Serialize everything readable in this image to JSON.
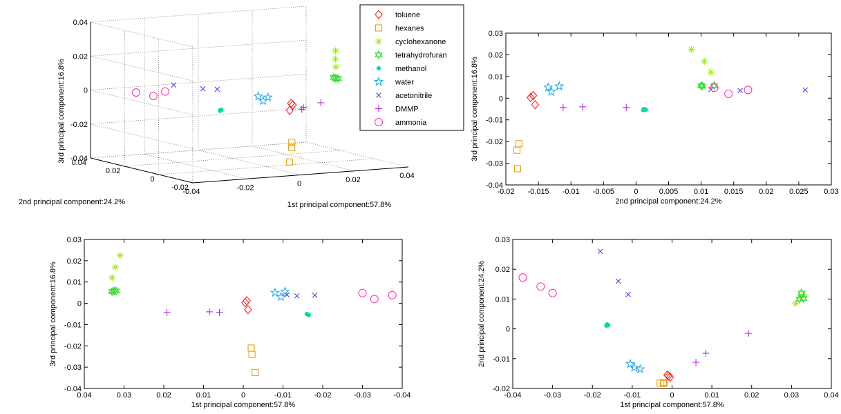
{
  "legend": [
    {
      "name": "toluene",
      "color": "#ff2222",
      "marker": "diamond"
    },
    {
      "name": "hexanes",
      "color": "#f0a000",
      "marker": "square"
    },
    {
      "name": "cyclohexanone",
      "color": "#99ee00",
      "marker": "asterisk"
    },
    {
      "name": "tetrahydrofuran",
      "color": "#33dd33",
      "marker": "hexagram"
    },
    {
      "name": "methanol",
      "color": "#00ddaa",
      "marker": "dot"
    },
    {
      "name": "water",
      "color": "#22aaee",
      "marker": "pentagram"
    },
    {
      "name": "acetonitrile",
      "color": "#4444ee",
      "marker": "x"
    },
    {
      "name": "DMMP",
      "color": "#bb22ee",
      "marker": "plus"
    },
    {
      "name": "ammonia",
      "color": "#ff33aa",
      "marker": "circle"
    }
  ],
  "chart_data": [
    {
      "type": "scatter",
      "view": "3d",
      "xlabel": "1st principal component:57.8%",
      "ylabel": "2nd principal component:24.2%",
      "zlabel": "3rd principal component:16.8%",
      "xlim": [
        -0.04,
        0.04
      ],
      "ylim": [
        -0.02,
        0.04
      ],
      "zlim": [
        -0.04,
        0.04
      ],
      "xticks": [
        -0.04,
        -0.02,
        0,
        0.02,
        0.04
      ],
      "yticks": [
        -0.02,
        0,
        0.02,
        0.04
      ],
      "zticks": [
        -0.04,
        -0.02,
        0,
        0.02,
        0.04
      ],
      "xtick_labels": [
        "-0.04",
        "-0.02",
        "0",
        "0.02",
        "0.04"
      ],
      "ytick_labels": [
        "-0.02",
        "0",
        "0.02",
        "0.04"
      ],
      "ztick_labels": [
        "-0.04",
        "-0.02",
        "0",
        "0.02",
        "0.04"
      ],
      "grid": true,
      "legend_position": "top-right",
      "series": [
        {
          "name": "toluene",
          "points": [
            [
              -0.0009,
              -0.0158,
              0.0012
            ],
            [
              -0.0005,
              -0.0162,
              0.0003
            ],
            [
              -0.0012,
              -0.0155,
              -0.003
            ]
          ]
        },
        {
          "name": "hexanes",
          "points": [
            [
              -0.002,
              -0.018,
              -0.021
            ],
            [
              -0.0022,
              -0.0183,
              -0.024
            ],
            [
              -0.003,
              -0.0182,
              -0.0325
            ]
          ]
        },
        {
          "name": "cyclohexanone",
          "points": [
            [
              0.031,
              0.0085,
              0.0225
            ],
            [
              0.0322,
              0.0105,
              0.017
            ],
            [
              0.033,
              0.0115,
              0.012
            ]
          ]
        },
        {
          "name": "tetrahydrofuran",
          "points": [
            [
              0.032,
              0.01,
              0.0058
            ],
            [
              0.0325,
              0.012,
              0.0058
            ],
            [
              0.033,
              0.0102,
              0.0055
            ]
          ]
        },
        {
          "name": "methanol",
          "points": [
            [
              -0.016,
              0.0012,
              -0.005
            ],
            [
              -0.0163,
              0.0015,
              -0.0053
            ],
            [
              -0.0165,
              0.0011,
              -0.0055
            ]
          ]
        },
        {
          "name": "water",
          "points": [
            [
              -0.008,
              -0.0135,
              0.005
            ],
            [
              -0.0095,
              -0.013,
              0.003
            ],
            [
              -0.0105,
              -0.0118,
              0.0055
            ]
          ]
        },
        {
          "name": "acetonitrile",
          "points": [
            [
              -0.0135,
              0.016,
              0.0035
            ],
            [
              -0.018,
              0.026,
              0.0038
            ],
            [
              -0.011,
              0.0115,
              0.004
            ]
          ]
        },
        {
          "name": "DMMP",
          "points": [
            [
              0.0192,
              -0.0015,
              -0.0043
            ],
            [
              0.0085,
              -0.0082,
              -0.004
            ],
            [
              0.006,
              -0.0112,
              -0.0043
            ]
          ]
        },
        {
          "name": "ammonia",
          "points": [
            [
              -0.03,
              0.012,
              0.0048
            ],
            [
              -0.033,
              0.0142,
              0.002
            ],
            [
              -0.0375,
              0.0172,
              0.0038
            ]
          ]
        }
      ]
    },
    {
      "type": "scatter",
      "projection": "y-z",
      "xlabel": "2nd principal component:24.2%",
      "ylabel": "3rd principal component:16.8%",
      "xlim": [
        -0.02,
        0.03
      ],
      "ylim": [
        -0.04,
        0.03
      ],
      "xticks": [
        -0.02,
        -0.015,
        -0.01,
        -0.005,
        0,
        0.005,
        0.01,
        0.015,
        0.02,
        0.025,
        0.03
      ],
      "yticks": [
        -0.04,
        -0.03,
        -0.02,
        -0.01,
        0,
        0.01,
        0.02,
        0.03
      ],
      "xtick_labels": [
        "-0.02",
        "-0.015",
        "-0.01",
        "-0.005",
        "0",
        "0.005",
        "0.01",
        "0.015",
        "0.02",
        "0.025",
        "0.03"
      ],
      "ytick_labels": [
        "-0.04",
        "-0.03",
        "-0.02",
        "-0.01",
        "0",
        "0.01",
        "0.02",
        "0.03"
      ],
      "grid": false
    },
    {
      "type": "scatter",
      "projection": "x-z",
      "xlabel": "1st principal component:57.8%",
      "ylabel": "3rd principal component:16.8%",
      "xlim": [
        0.04,
        -0.04
      ],
      "ylim": [
        -0.04,
        0.03
      ],
      "xticks": [
        0.04,
        0.03,
        0.02,
        0.01,
        0,
        -0.01,
        -0.02,
        -0.03,
        -0.04
      ],
      "yticks": [
        -0.04,
        -0.03,
        -0.02,
        -0.01,
        0,
        0.01,
        0.02,
        0.03
      ],
      "xtick_labels": [
        "0.04",
        "0.03",
        "0.02",
        "0.01",
        "0",
        "-0.01",
        "-0.02",
        "-0.03",
        "-0.04"
      ],
      "ytick_labels": [
        "-0.04",
        "-0.03",
        "-0.02",
        "-0.01",
        "0",
        "0.01",
        "0.02",
        "0.03"
      ],
      "grid": false
    },
    {
      "type": "scatter",
      "projection": "x-y",
      "xlabel": "1st principal component:57.8%",
      "ylabel": "2nd principal component:24.2%",
      "xlim": [
        -0.04,
        0.04
      ],
      "ylim": [
        -0.02,
        0.03
      ],
      "xticks": [
        -0.04,
        -0.03,
        -0.02,
        -0.01,
        0,
        0.01,
        0.02,
        0.03,
        0.04
      ],
      "yticks": [
        -0.02,
        -0.01,
        0,
        0.01,
        0.02,
        0.03
      ],
      "xtick_labels": [
        "-0.04",
        "-0.03",
        "-0.02",
        "-0.01",
        "0",
        "0.01",
        "0.02",
        "0.03",
        "0.04"
      ],
      "ytick_labels": [
        "-0.02",
        "-0.01",
        "0",
        "0.01",
        "0.02",
        "0.03"
      ],
      "grid": false
    }
  ]
}
